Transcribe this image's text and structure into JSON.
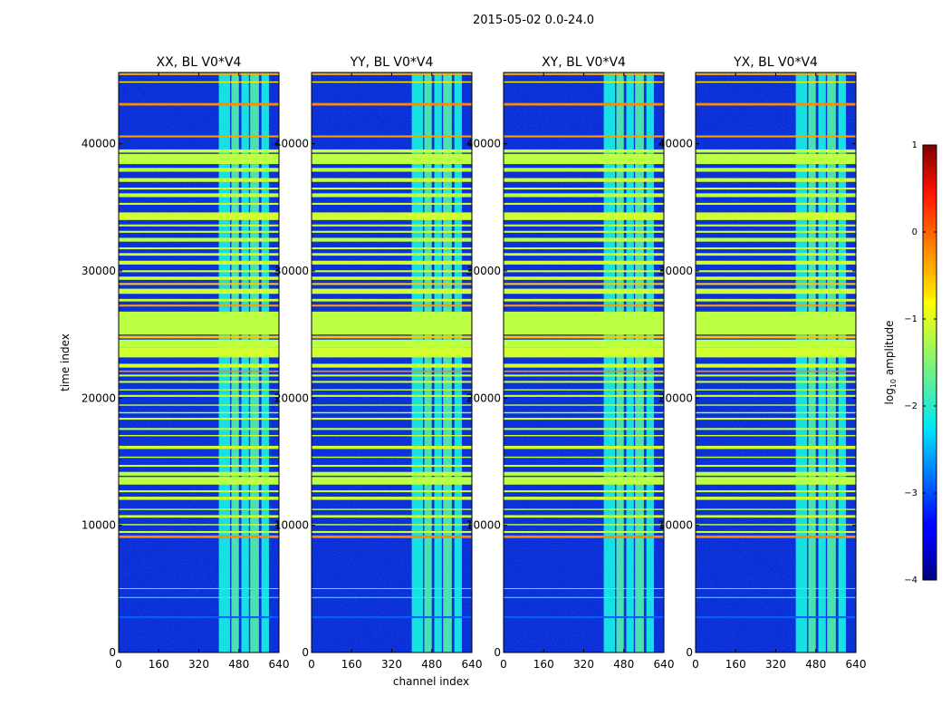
{
  "chart_data": {
    "type": "heatmap",
    "title": "2015-05-02 0.0-24.0",
    "xlabel": "channel index",
    "ylabel": "time index",
    "xlim": [
      0,
      640
    ],
    "ylim": [
      0,
      45600
    ],
    "xticks": [
      "0",
      "160",
      "320",
      "480",
      "640"
    ],
    "yticks": [
      "0",
      "10000",
      "20000",
      "30000",
      "40000"
    ],
    "panels": [
      {
        "title": "XX, BL V0*V4"
      },
      {
        "title": "YY, BL V0*V4"
      },
      {
        "title": "XY, BL V0*V4"
      },
      {
        "title": "YX, BL V0*V4"
      }
    ],
    "colorbar": {
      "label": "log10 amplitude",
      "range": [
        -4,
        1
      ],
      "ticks": [
        "1",
        "0",
        "−1",
        "−2",
        "−3",
        "−4"
      ]
    },
    "bright_channel_bands": [
      [
        400,
        445
      ],
      [
        450,
        480
      ],
      [
        490,
        520
      ],
      [
        525,
        560
      ],
      [
        570,
        600
      ]
    ],
    "flagged_time_rows": [
      [
        2700,
        150,
        -2.9
      ],
      [
        5000,
        60,
        -2.0
      ],
      [
        4300,
        60,
        -2.0
      ],
      [
        9000,
        200,
        -0.3
      ],
      [
        9400,
        150,
        -1.1
      ],
      [
        10000,
        100,
        -1.1
      ],
      [
        10600,
        200,
        -1.1
      ],
      [
        11200,
        100,
        -1.2
      ],
      [
        12000,
        250,
        -1.1
      ],
      [
        12600,
        150,
        -1.1
      ],
      [
        13200,
        600,
        -1.2
      ],
      [
        13900,
        300,
        -1.2
      ],
      [
        14600,
        150,
        -1.1
      ],
      [
        15300,
        100,
        -1.2
      ],
      [
        16000,
        250,
        -1.1
      ],
      [
        17000,
        100,
        -1.1
      ],
      [
        17500,
        150,
        -1.2
      ],
      [
        18300,
        150,
        -1.1
      ],
      [
        18800,
        100,
        -1.1
      ],
      [
        19400,
        100,
        -1.2
      ],
      [
        20100,
        150,
        -1.1
      ],
      [
        20600,
        100,
        -1.2
      ],
      [
        21200,
        150,
        -1.1
      ],
      [
        21700,
        150,
        -1.2
      ],
      [
        22050,
        120,
        -0.3
      ],
      [
        22400,
        300,
        -1.1
      ],
      [
        23200,
        800,
        -1.1
      ],
      [
        24000,
        600,
        -1.2
      ],
      [
        24700,
        200,
        -0.6
      ],
      [
        25000,
        1800,
        -1.2
      ],
      [
        27200,
        150,
        -0.4
      ],
      [
        27600,
        200,
        -1.1
      ],
      [
        28200,
        400,
        -1.1
      ],
      [
        28900,
        150,
        -0.6
      ],
      [
        29300,
        250,
        -1.1
      ],
      [
        29900,
        150,
        -1.1
      ],
      [
        30500,
        300,
        -1.1
      ],
      [
        31200,
        200,
        -1.1
      ],
      [
        31700,
        150,
        -1.1
      ],
      [
        32300,
        300,
        -1.2
      ],
      [
        33000,
        150,
        -1.1
      ],
      [
        33500,
        150,
        -1.1
      ],
      [
        34000,
        600,
        -1.1
      ],
      [
        35200,
        150,
        -1.1
      ],
      [
        35800,
        300,
        -1.2
      ],
      [
        36400,
        150,
        -1.1
      ],
      [
        37000,
        300,
        -1.1
      ],
      [
        37800,
        300,
        -1.2
      ],
      [
        38400,
        800,
        -1.2
      ],
      [
        39300,
        250,
        -1.1
      ],
      [
        40500,
        150,
        -0.4
      ],
      [
        43000,
        200,
        -0.3
      ],
      [
        44800,
        100,
        -0.8
      ],
      [
        45400,
        150,
        -0.5
      ]
    ]
  }
}
